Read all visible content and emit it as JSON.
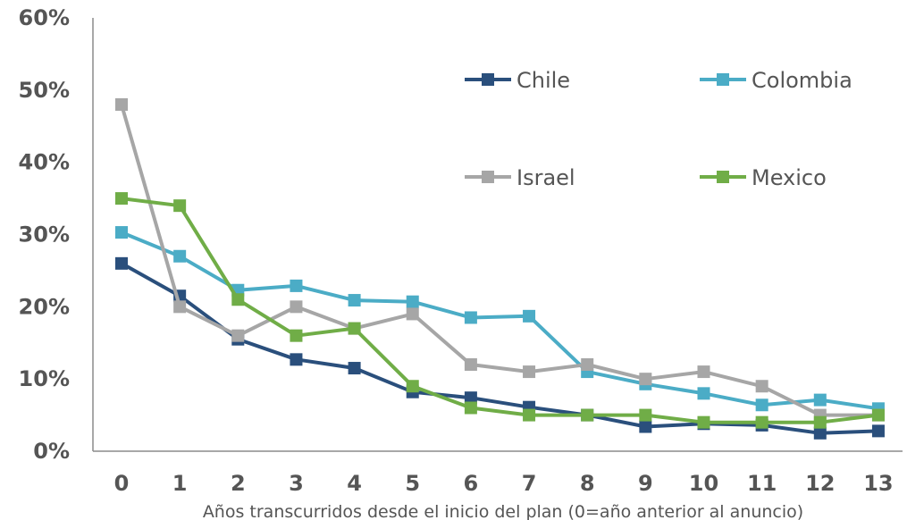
{
  "chart_data": {
    "type": "line",
    "title": "",
    "xlabel": "Años transcurridos desde el inicio del plan (0=año anterior al anuncio)",
    "ylabel": "",
    "x": [
      0,
      1,
      2,
      3,
      4,
      5,
      6,
      7,
      8,
      9,
      10,
      11,
      12,
      13
    ],
    "ylim": [
      0,
      60
    ],
    "yticks": [
      0,
      10,
      20,
      30,
      40,
      50,
      60
    ],
    "ytick_labels": [
      "0%",
      "10%",
      "20%",
      "30%",
      "40%",
      "50%",
      "60%"
    ],
    "grid": false,
    "legend_position": "upper-right",
    "series": [
      {
        "name": "Chile",
        "color": "#2a4f7c",
        "values": [
          26,
          21.5,
          15.5,
          12.7,
          11.5,
          8.2,
          7.4,
          6.1,
          5,
          3.4,
          3.8,
          3.6,
          2.5,
          2.8
        ]
      },
      {
        "name": "Colombia",
        "color": "#4bacc6",
        "values": [
          30.3,
          27,
          22.3,
          22.9,
          20.9,
          20.7,
          18.5,
          18.7,
          11,
          9.3,
          8,
          6.4,
          7.1,
          5.9
        ]
      },
      {
        "name": "Israel",
        "color": "#a6a6a6",
        "values": [
          48,
          20,
          16,
          20,
          17,
          19,
          12,
          11,
          12,
          10,
          11,
          9,
          5,
          5
        ]
      },
      {
        "name": "Mexico",
        "color": "#70ad47",
        "values": [
          35,
          34,
          21,
          16,
          17,
          9,
          6,
          5,
          5,
          5,
          4,
          4,
          4,
          5
        ]
      }
    ]
  }
}
